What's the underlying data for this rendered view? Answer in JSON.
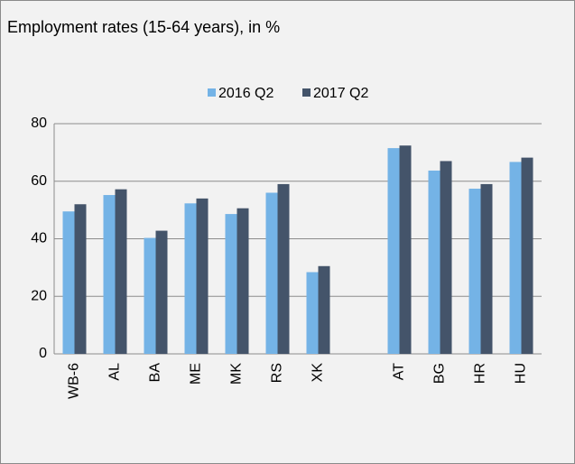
{
  "chart_data": {
    "type": "bar",
    "title": "Employment rates (15-64 years), in %",
    "categories": [
      "WB-6",
      "AL",
      "BA",
      "ME",
      "MK",
      "RS",
      "XK",
      null,
      "AT",
      "BG",
      "HR",
      "HU"
    ],
    "series": [
      {
        "name": "2016 Q2",
        "color": "#74b3e6",
        "values": [
          49.5,
          55.2,
          40.3,
          52.3,
          48.6,
          56.0,
          28.4,
          null,
          71.5,
          63.7,
          57.4,
          66.7
        ]
      },
      {
        "name": "2017 Q2",
        "color": "#44546a",
        "values": [
          52.0,
          57.2,
          42.8,
          54.0,
          50.6,
          59.0,
          30.5,
          null,
          72.4,
          67.0,
          59.0,
          68.2
        ]
      }
    ],
    "ylim": [
      0,
      80
    ],
    "yticks": [
      0,
      20,
      40,
      60,
      80
    ],
    "grid": true,
    "legend": "top"
  }
}
